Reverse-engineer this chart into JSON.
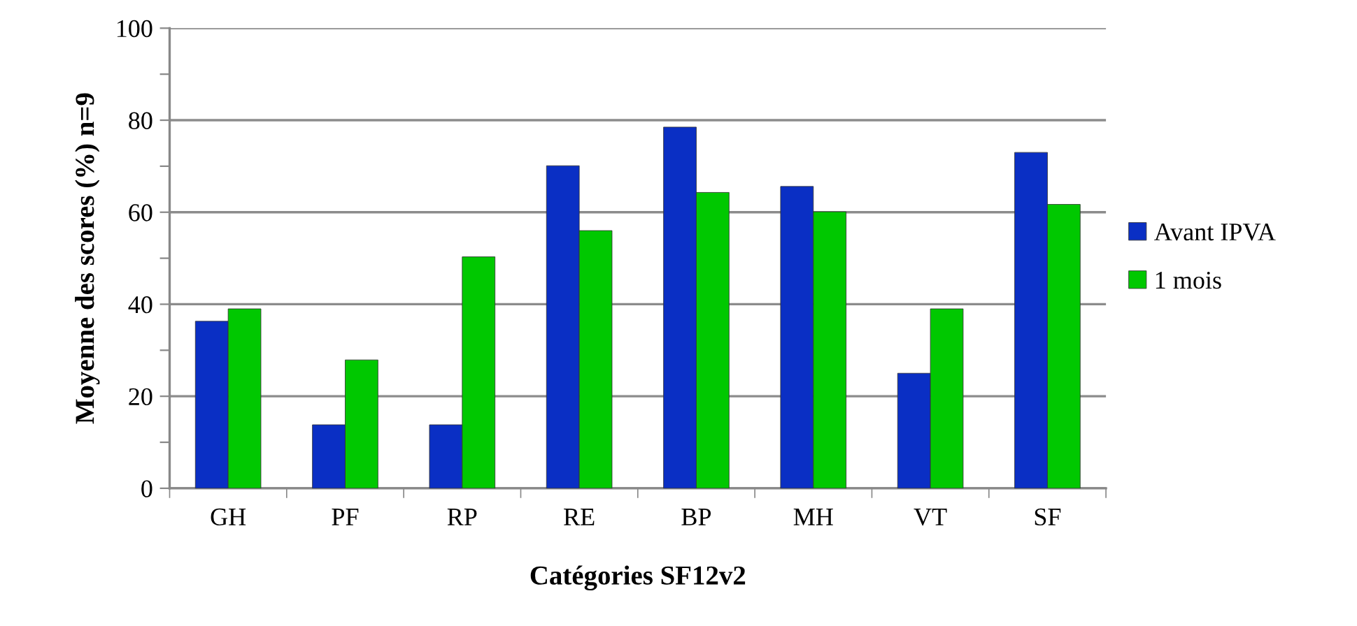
{
  "chart_data": {
    "type": "bar",
    "xlabel": "Catégories SF12v2",
    "ylabel": "Moyenne des scores (%) n=9",
    "categories": [
      "GH",
      "PF",
      "RP",
      "RE",
      "BP",
      "MH",
      "VT",
      "SF"
    ],
    "series": [
      {
        "name": "Avant IPVA",
        "color": "#0a2fc4",
        "values": [
          36.3,
          13.8,
          13.8,
          70.1,
          78.5,
          65.6,
          25.0,
          73.0
        ]
      },
      {
        "name": "1 mois",
        "color": "#00c800",
        "values": [
          39.0,
          27.9,
          50.3,
          56.0,
          64.3,
          60.1,
          39.0,
          61.7
        ]
      }
    ],
    "ylim": [
      0,
      100
    ],
    "yticks": [
      0,
      {
        "value": 10,
        "label": null
      },
      20,
      {
        "value": 30,
        "label": null
      },
      40,
      {
        "value": 50,
        "label": null
      },
      60,
      {
        "value": 70,
        "label": null
      },
      80,
      {
        "value": 90,
        "label": null
      },
      100
    ],
    "grid": "y",
    "legend": "right"
  }
}
